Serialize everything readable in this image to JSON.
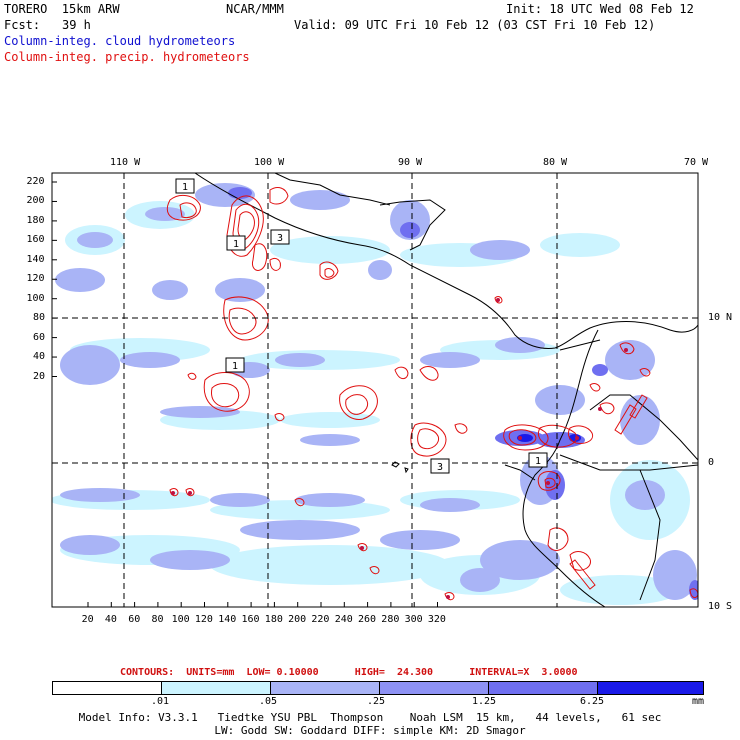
{
  "header": {
    "model": "TORERO  15km ARW",
    "org": "NCAR/MMM",
    "init": "Init: 18 UTC Wed 08 Feb 12",
    "fcst_label": "Fcst:",
    "fcst_value": "39 h",
    "valid": "Valid: 09 UTC Fri 10 Feb 12 (03 CST Fri 10 Feb 12)",
    "field1": "Column-integ. cloud hydrometeors",
    "field2": "Column-integ. precip. hydrometeors"
  },
  "colors": {
    "field1": "#1010d0",
    "field2": "#e01010",
    "shade_1": "#ccf4ff",
    "shade_2": "#a9b4f6",
    "shade_3": "#8e92f4",
    "shade_4": "#6f6ff0",
    "shade_5": "#3c3cf0",
    "shade_6": "#1a1ae8",
    "coast": "#000000",
    "contour": "#e01010"
  },
  "map": {
    "lon_labels": [
      "110 W",
      "100 W",
      "90 W",
      "80 W",
      "70 W"
    ],
    "lat_labels": [
      "10 N",
      "0",
      "10 S"
    ],
    "x_ticks": [
      "20",
      "40",
      "60",
      "80",
      "100",
      "120",
      "140",
      "160",
      "180",
      "200",
      "220",
      "240",
      "260",
      "280",
      "300",
      "320"
    ],
    "y_ticks": [
      "220",
      "200",
      "180",
      "160",
      "140",
      "120",
      "100",
      "80",
      "60",
      "40",
      "20"
    ],
    "contour_labels": [
      "1",
      "1",
      "3",
      "1",
      "3",
      "1"
    ]
  },
  "legend": {
    "contours_text": "CONTOURS:  UNITS=mm  LOW= 0.10000      HIGH=  24.300      INTERVAL=X  3.0000",
    "breaks": [
      ".01",
      ".05",
      ".25",
      "1.25",
      "6.25"
    ],
    "units": "mm"
  },
  "footer": {
    "line1": "Model Info: V3.3.1   Tiedtke YSU PBL  Thompson    Noah LSM  15 km,   44 levels,   61 sec",
    "line2": "LW: Godd SW: Goddard DIFF: simple KM: 2D Smagor"
  }
}
